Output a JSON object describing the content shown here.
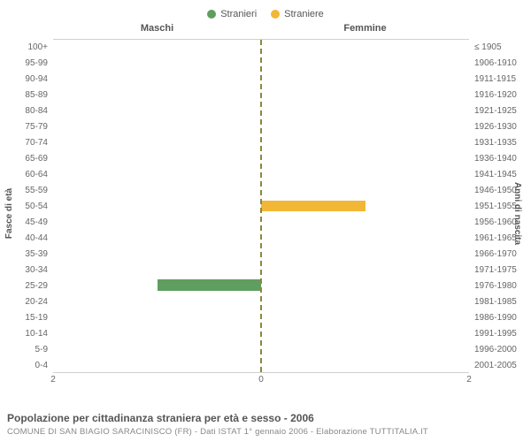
{
  "legend": {
    "male": {
      "label": "Stranieri",
      "color": "#5f9e5f"
    },
    "female": {
      "label": "Straniere",
      "color": "#f2b736"
    }
  },
  "columns": {
    "male": "Maschi",
    "female": "Femmine"
  },
  "axes": {
    "left_label": "Fasce di età",
    "right_label": "Anni di nascita",
    "xmax": 2,
    "xticks_left": [
      "2",
      "0"
    ],
    "xticks_right": [
      "0",
      "2"
    ]
  },
  "age_bands": [
    {
      "age": "100+",
      "birth": "≤ 1905",
      "m": 0,
      "f": 0
    },
    {
      "age": "95-99",
      "birth": "1906-1910",
      "m": 0,
      "f": 0
    },
    {
      "age": "90-94",
      "birth": "1911-1915",
      "m": 0,
      "f": 0
    },
    {
      "age": "85-89",
      "birth": "1916-1920",
      "m": 0,
      "f": 0
    },
    {
      "age": "80-84",
      "birth": "1921-1925",
      "m": 0,
      "f": 0
    },
    {
      "age": "75-79",
      "birth": "1926-1930",
      "m": 0,
      "f": 0
    },
    {
      "age": "70-74",
      "birth": "1931-1935",
      "m": 0,
      "f": 0
    },
    {
      "age": "65-69",
      "birth": "1936-1940",
      "m": 0,
      "f": 0
    },
    {
      "age": "60-64",
      "birth": "1941-1945",
      "m": 0,
      "f": 0
    },
    {
      "age": "55-59",
      "birth": "1946-1950",
      "m": 0,
      "f": 0
    },
    {
      "age": "50-54",
      "birth": "1951-1955",
      "m": 0,
      "f": 1
    },
    {
      "age": "45-49",
      "birth": "1956-1960",
      "m": 0,
      "f": 0
    },
    {
      "age": "40-44",
      "birth": "1961-1965",
      "m": 0,
      "f": 0
    },
    {
      "age": "35-39",
      "birth": "1966-1970",
      "m": 0,
      "f": 0
    },
    {
      "age": "30-34",
      "birth": "1971-1975",
      "m": 0,
      "f": 0
    },
    {
      "age": "25-29",
      "birth": "1976-1980",
      "m": 1,
      "f": 0
    },
    {
      "age": "20-24",
      "birth": "1981-1985",
      "m": 0,
      "f": 0
    },
    {
      "age": "15-19",
      "birth": "1986-1990",
      "m": 0,
      "f": 0
    },
    {
      "age": "10-14",
      "birth": "1991-1995",
      "m": 0,
      "f": 0
    },
    {
      "age": "5-9",
      "birth": "1996-2000",
      "m": 0,
      "f": 0
    },
    {
      "age": "0-4",
      "birth": "2001-2005",
      "m": 0,
      "f": 0
    }
  ],
  "colors": {
    "male_bar": "#5f9e5f",
    "female_bar": "#f2b736",
    "grid": "#d0d0d0",
    "center_line": "#8a8a3a",
    "background": "#ffffff"
  },
  "footer": {
    "title": "Popolazione per cittadinanza straniera per età e sesso - 2006",
    "subtitle": "COMUNE DI SAN BIAGIO SARACINISCO (FR) - Dati ISTAT 1° gennaio 2006 - Elaborazione TUTTITALIA.IT"
  }
}
